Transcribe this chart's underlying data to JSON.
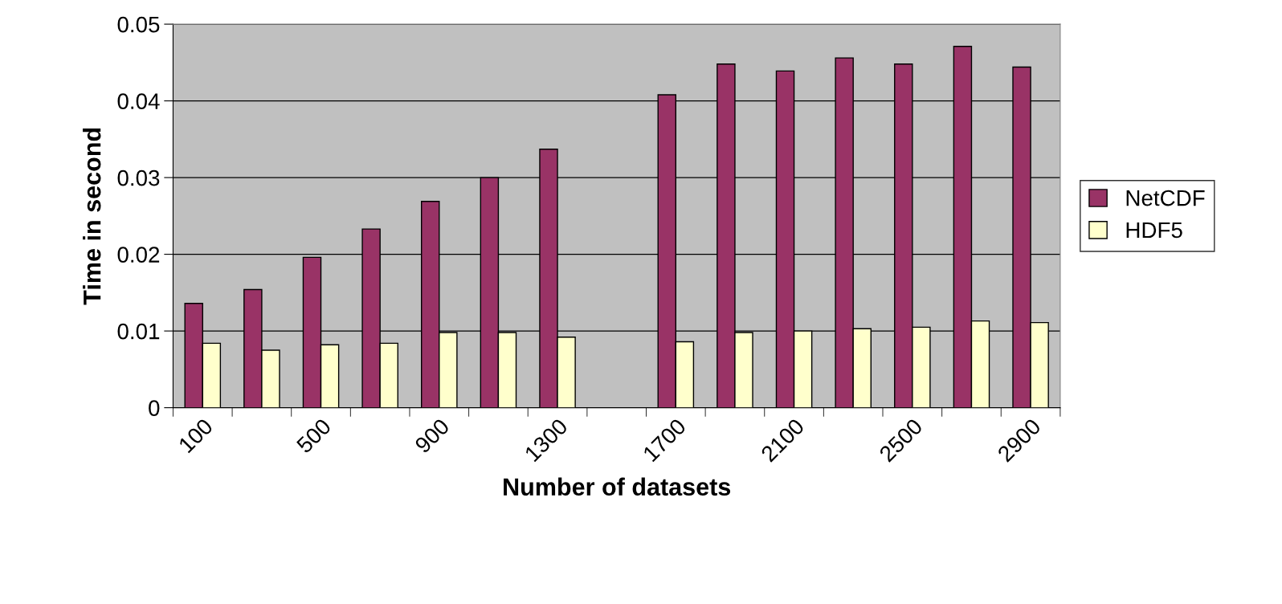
{
  "chart_data": {
    "type": "bar",
    "xlabel": "Number of datasets",
    "ylabel": "Time in second",
    "categories": [
      "100",
      null,
      "500",
      null,
      "900",
      null,
      "1300",
      null,
      "1700",
      null,
      "2100",
      null,
      "2500",
      null,
      "2900"
    ],
    "series": [
      {
        "name": "NetCDF",
        "color": "#993366",
        "values": [
          0.0136,
          0.0154,
          0.0196,
          0.0233,
          0.0269,
          0.03,
          0.0337,
          null,
          0.0408,
          0.0448,
          0.0439,
          0.0456,
          0.0448,
          0.0471,
          0.0444
        ]
      },
      {
        "name": "HDF5",
        "color": "#ffffcc",
        "values": [
          0.0084,
          0.0075,
          0.0082,
          0.0084,
          0.0098,
          0.0098,
          0.0092,
          null,
          0.0086,
          0.0098,
          0.01,
          0.0103,
          0.0105,
          0.0113,
          0.0111
        ]
      }
    ],
    "ylim": [
      0,
      0.05
    ],
    "yticks": [
      {
        "value": 0,
        "label": "0"
      },
      0.01,
      0.02,
      0.03,
      0.04,
      0.05
    ],
    "grid": "y",
    "legend": "right"
  }
}
